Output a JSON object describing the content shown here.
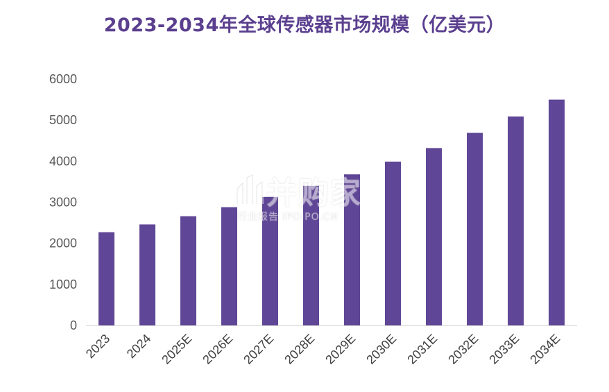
{
  "chart_data": {
    "type": "bar",
    "title": "2023-2034年全球传感器市场规模（亿美元）",
    "categories": [
      "2023",
      "2024",
      "2025E",
      "2026E",
      "2027E",
      "2028E",
      "2029E",
      "2030E",
      "2031E",
      "2032E",
      "2033E",
      "2034E"
    ],
    "values": [
      2270,
      2460,
      2660,
      2880,
      3130,
      3400,
      3680,
      3990,
      4320,
      4690,
      5090,
      5500
    ],
    "ylim": [
      0,
      6000
    ],
    "yticks": [
      0,
      1000,
      2000,
      3000,
      4000,
      5000,
      6000
    ],
    "grid": false,
    "bar_color": "#5f4696",
    "title_color": "#5b3f8f"
  },
  "watermark": {
    "main": "并购家",
    "sub": "行业报告 IPOIPO.CN"
  }
}
